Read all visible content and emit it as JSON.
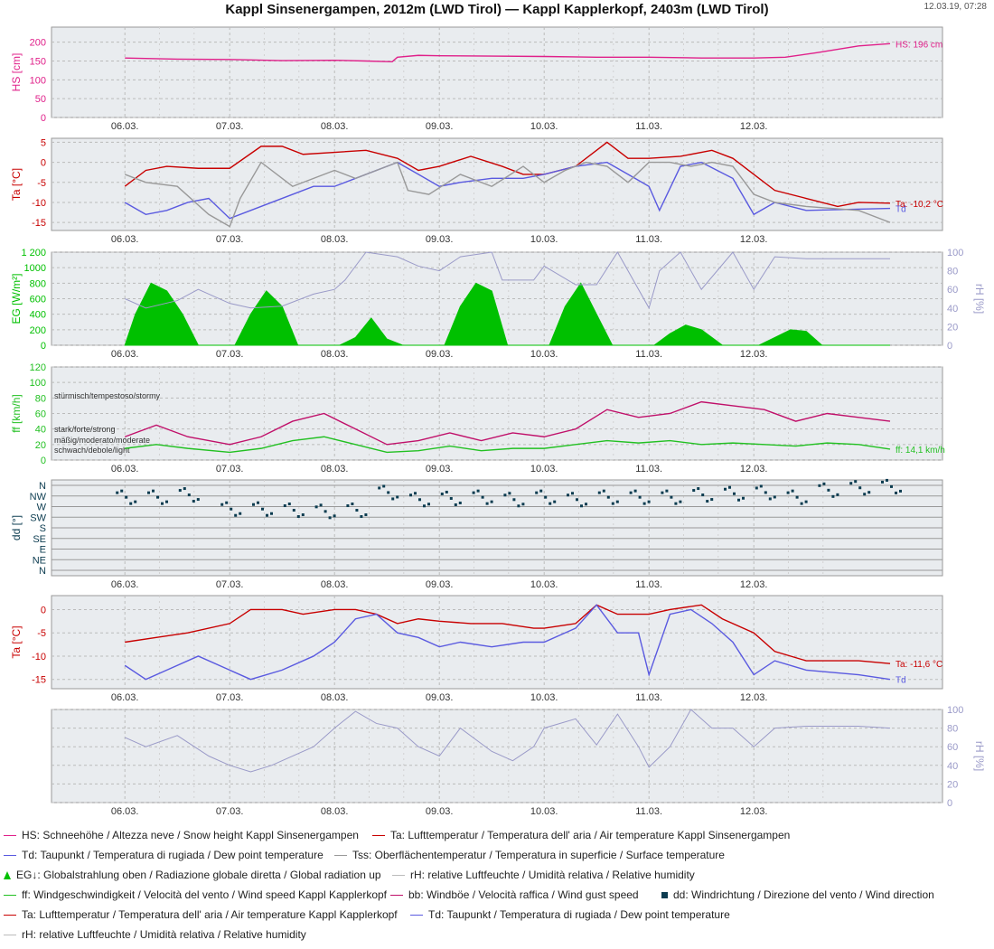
{
  "header": {
    "title": "Kappl Sinsenergampen, 2012m (LWD Tirol) — Kappl Kapplerkopf, 2403m (LWD Tirol)",
    "timestamp": "12.03.19, 07:28"
  },
  "colors": {
    "hs": "#e0208a",
    "ta": "#c80000",
    "td": "#5a5ae0",
    "tss": "#999999",
    "eg": "#00c000",
    "rh": "#9a9ac8",
    "ff": "#22c022",
    "bb": "#c0106a",
    "dd": "#0c3c50",
    "panel_bg": "#e9ecef"
  },
  "chart_data": [
    {
      "id": "hs",
      "type": "line",
      "ylabel": "HS [cm]",
      "ylim": [
        0,
        240
      ],
      "yticks": [
        0,
        50,
        100,
        150,
        200
      ],
      "xticks": [
        "06.03.",
        "07.03.",
        "08.03.",
        "09.03.",
        "10.03.",
        "11.03.",
        "12.03."
      ],
      "series": [
        {
          "name": "HS",
          "end_label": "HS: 196 cm",
          "x": [
            0,
            0.5,
            1,
            1.5,
            2,
            2.3,
            2.55,
            2.6,
            2.8,
            3,
            3.5,
            4,
            4.5,
            5,
            5.5,
            6,
            6.3,
            6.6,
            7,
            7.3
          ],
          "y": [
            158,
            155,
            154,
            151,
            152,
            150,
            148,
            160,
            165,
            164,
            163,
            162,
            160,
            160,
            158,
            158,
            160,
            172,
            190,
            196
          ]
        }
      ]
    },
    {
      "id": "ta1",
      "type": "line",
      "ylabel": "Ta [°C]",
      "ylim": [
        -17,
        6
      ],
      "yticks": [
        -15,
        -10,
        -5,
        0,
        5
      ],
      "xticks": [
        "06.03.",
        "07.03.",
        "08.03.",
        "09.03.",
        "10.03.",
        "11.03.",
        "12.03."
      ],
      "series": [
        {
          "name": "Ta",
          "end_label": "Ta: -10,2 °C",
          "x": [
            0,
            0.2,
            0.4,
            0.7,
            1,
            1.3,
            1.5,
            1.7,
            2,
            2.3,
            2.6,
            2.8,
            3,
            3.3,
            3.6,
            3.8,
            4,
            4.3,
            4.6,
            4.8,
            5,
            5.3,
            5.6,
            5.8,
            6,
            6.2,
            6.5,
            6.8,
            7,
            7.3
          ],
          "y": [
            -6,
            -2,
            -1,
            -1.5,
            -1.5,
            4,
            4,
            2,
            2.5,
            3,
            1,
            -2,
            -1,
            1.5,
            -1,
            -3,
            -3,
            -1,
            5,
            1,
            1,
            1.5,
            3,
            1,
            -3,
            -7,
            -9,
            -11,
            -10,
            -10.2
          ]
        },
        {
          "name": "Td",
          "end_label": "Td",
          "x": [
            0,
            0.2,
            0.4,
            0.6,
            0.8,
            1,
            1.2,
            1.4,
            1.6,
            1.8,
            2,
            2.3,
            2.6,
            2.8,
            3,
            3.2,
            3.5,
            3.8,
            4,
            4.3,
            4.6,
            4.8,
            5,
            5.1,
            5.3,
            5.5,
            5.8,
            6,
            6.2,
            6.5,
            7.3
          ],
          "y": [
            -10,
            -13,
            -12,
            -10,
            -9,
            -14,
            -12,
            -10,
            -8,
            -6,
            -6,
            -3,
            0,
            -3,
            -6,
            -5,
            -4,
            -4,
            -3,
            -1,
            0,
            -3,
            -6,
            -12,
            -1,
            0,
            -4,
            -13,
            -10,
            -12,
            -11.5
          ]
        },
        {
          "name": "Tss",
          "end_label": "",
          "x": [
            0,
            0.2,
            0.5,
            0.8,
            1,
            1.1,
            1.3,
            1.6,
            1.8,
            2,
            2.2,
            2.4,
            2.6,
            2.7,
            2.9,
            3.2,
            3.5,
            3.8,
            4,
            4.2,
            4.4,
            4.6,
            4.8,
            5,
            5.2,
            5.4,
            5.6,
            5.8,
            6,
            6.2,
            6.5,
            7,
            7.3
          ],
          "y": [
            -3,
            -5,
            -6,
            -13,
            -16,
            -9,
            0,
            -6,
            -4,
            -2,
            -4,
            -2,
            0,
            -7,
            -8,
            -3,
            -6,
            -1,
            -5,
            -2,
            0,
            -1,
            -5,
            0,
            0,
            -1,
            0,
            -1,
            -8,
            -10,
            -11,
            -12,
            -15
          ]
        }
      ]
    },
    {
      "id": "eg",
      "type": "area",
      "ylabel": "EG [W/m²]",
      "ylim": [
        0,
        1200
      ],
      "yticks": [
        0,
        200,
        400,
        600,
        800,
        1000,
        "1 200"
      ],
      "y2label": "rH [%]",
      "y2lim": [
        0,
        100
      ],
      "y2ticks": [
        0,
        20,
        40,
        60,
        80,
        100
      ],
      "xticks": [
        "06.03.",
        "07.03.",
        "08.03.",
        "09.03.",
        "10.03.",
        "11.03.",
        "12.03."
      ],
      "series": [
        {
          "name": "EG",
          "x": [
            0,
            0.1,
            0.25,
            0.4,
            0.55,
            0.7,
            1,
            1.05,
            1.2,
            1.35,
            1.5,
            1.65,
            1.7,
            2,
            2.05,
            2.2,
            2.35,
            2.5,
            2.65,
            2.7,
            3,
            3.05,
            3.2,
            3.35,
            3.5,
            3.65,
            3.7,
            4,
            4.05,
            4.2,
            4.35,
            4.5,
            4.65,
            4.7,
            5,
            5.05,
            5.2,
            5.35,
            5.5,
            5.65,
            5.7,
            6,
            6.05,
            6.2,
            6.35,
            6.5,
            6.65,
            6.7,
            7.3
          ],
          "y": [
            0,
            400,
            800,
            700,
            400,
            0,
            0,
            0,
            400,
            700,
            500,
            0,
            0,
            0,
            0,
            100,
            350,
            80,
            0,
            0,
            0,
            0,
            500,
            800,
            700,
            0,
            0,
            0,
            0,
            500,
            800,
            400,
            0,
            0,
            0,
            0,
            150,
            260,
            200,
            50,
            0,
            0,
            0,
            100,
            200,
            180,
            0,
            0,
            0
          ]
        },
        {
          "name": "rH",
          "axis": "y2",
          "x": [
            0,
            0.2,
            0.5,
            0.7,
            1,
            1.2,
            1.5,
            1.8,
            2,
            2.1,
            2.3,
            2.6,
            2.8,
            3,
            3.2,
            3.5,
            3.6,
            3.9,
            4,
            4.3,
            4.5,
            4.7,
            5,
            5.1,
            5.3,
            5.5,
            5.8,
            6,
            6.2,
            6.5,
            7.3
          ],
          "y": [
            50,
            40,
            48,
            60,
            45,
            40,
            42,
            55,
            60,
            70,
            100,
            95,
            85,
            80,
            95,
            100,
            70,
            70,
            85,
            65,
            65,
            100,
            40,
            80,
            100,
            60,
            100,
            60,
            95,
            93,
            93
          ]
        }
      ]
    },
    {
      "id": "ff",
      "type": "line",
      "ylabel": "ff [km/h]",
      "ylim": [
        0,
        120
      ],
      "yticks": [
        0,
        20,
        40,
        60,
        80,
        100,
        120
      ],
      "annotations": [
        "stürmisch/tempestoso/stormy",
        "stark/forte/strong",
        "mäßig/moderato/moderate",
        "schwach/debole/light"
      ],
      "xticks": [
        "06.03.",
        "07.03.",
        "08.03.",
        "09.03.",
        "10.03.",
        "11.03.",
        "12.03."
      ],
      "series": [
        {
          "name": "bb",
          "x": [
            0,
            0.3,
            0.6,
            1,
            1.3,
            1.6,
            1.9,
            2.2,
            2.5,
            2.8,
            3.1,
            3.4,
            3.7,
            4,
            4.3,
            4.6,
            4.9,
            5.2,
            5.5,
            5.8,
            6.1,
            6.4,
            6.7,
            7,
            7.3
          ],
          "y": [
            30,
            45,
            30,
            20,
            30,
            50,
            60,
            40,
            20,
            25,
            35,
            25,
            35,
            30,
            40,
            65,
            55,
            60,
            75,
            70,
            65,
            50,
            60,
            55,
            50
          ]
        },
        {
          "name": "ff",
          "end_label": "ff: 14,1 km/h",
          "x": [
            0,
            0.3,
            0.6,
            1,
            1.3,
            1.6,
            1.9,
            2.2,
            2.5,
            2.8,
            3.1,
            3.4,
            3.7,
            4,
            4.3,
            4.6,
            4.9,
            5.2,
            5.5,
            5.8,
            6.1,
            6.4,
            6.7,
            7,
            7.3
          ],
          "y": [
            15,
            20,
            15,
            10,
            15,
            25,
            30,
            20,
            10,
            12,
            18,
            12,
            15,
            15,
            20,
            25,
            22,
            25,
            20,
            22,
            20,
            18,
            22,
            20,
            14
          ]
        }
      ]
    },
    {
      "id": "dd",
      "type": "scatter",
      "ylabel": "dd [°]",
      "yticks": [
        "N",
        "NW",
        "W",
        "SW",
        "S",
        "SE",
        "E",
        "NE",
        "N"
      ],
      "xticks": [
        "06.03.",
        "07.03.",
        "08.03.",
        "09.03.",
        "10.03.",
        "11.03.",
        "12.03."
      ],
      "series": [
        {
          "name": "dd",
          "x": [
            0,
            0.3,
            0.6,
            1,
            1.3,
            1.6,
            1.9,
            2.2,
            2.5,
            2.8,
            3.1,
            3.4,
            3.7,
            4,
            4.3,
            4.6,
            4.9,
            5.2,
            5.5,
            5.8,
            6.1,
            6.4,
            6.7,
            7,
            7.3
          ],
          "y": [
            300,
            300,
            310,
            250,
            250,
            245,
            240,
            245,
            320,
            290,
            295,
            300,
            290,
            300,
            290,
            300,
            300,
            300,
            310,
            315,
            320,
            300,
            330,
            340,
            345
          ]
        }
      ]
    },
    {
      "id": "ta2",
      "type": "line",
      "ylabel": "Ta [°C]",
      "ylim": [
        -17,
        3
      ],
      "yticks": [
        -15,
        -10,
        -5,
        0
      ],
      "xticks": [
        "06.03.",
        "07.03.",
        "08.03.",
        "09.03.",
        "10.03.",
        "11.03.",
        "12.03."
      ],
      "series": [
        {
          "name": "Ta",
          "end_label": "Ta: -11,6 °C",
          "x": [
            0,
            0.3,
            0.6,
            1,
            1.2,
            1.5,
            1.7,
            2,
            2.2,
            2.4,
            2.6,
            2.8,
            3,
            3.3,
            3.6,
            3.9,
            4,
            4.3,
            4.5,
            4.7,
            5,
            5.2,
            5.5,
            5.7,
            6,
            6.2,
            6.5,
            7,
            7.3
          ],
          "y": [
            -7,
            -6,
            -5,
            -3,
            0,
            0,
            -1,
            0,
            0,
            -1,
            -3,
            -2,
            -2.5,
            -3,
            -3,
            -4,
            -4,
            -3,
            1,
            -1,
            -1,
            0,
            1,
            -2,
            -5,
            -9,
            -11,
            -11,
            -11.6
          ]
        },
        {
          "name": "Td",
          "end_label": "Td",
          "x": [
            0,
            0.2,
            0.4,
            0.7,
            1,
            1.2,
            1.5,
            1.8,
            2,
            2.2,
            2.4,
            2.6,
            2.8,
            3,
            3.2,
            3.5,
            3.8,
            4,
            4.3,
            4.5,
            4.7,
            4.9,
            5,
            5.2,
            5.4,
            5.6,
            5.8,
            6,
            6.2,
            6.5,
            7,
            7.3
          ],
          "y": [
            -12,
            -15,
            -13,
            -10,
            -13,
            -15,
            -13,
            -10,
            -7,
            -2,
            -1,
            -5,
            -6,
            -8,
            -7,
            -8,
            -7,
            -7,
            -4,
            1,
            -5,
            -5,
            -14,
            -1,
            0,
            -3,
            -7,
            -14,
            -11,
            -13,
            -14,
            -15
          ]
        }
      ]
    },
    {
      "id": "rh",
      "type": "line",
      "y2label": "rH [%]",
      "y2lim": [
        0,
        100
      ],
      "y2ticks": [
        0,
        20,
        40,
        60,
        80,
        100
      ],
      "xticks": [
        "06.03.",
        "07.03.",
        "08.03.",
        "09.03.",
        "10.03.",
        "11.03.",
        "12.03."
      ],
      "series": [
        {
          "name": "rH",
          "axis": "y2",
          "x": [
            0,
            0.2,
            0.5,
            0.8,
            1,
            1.2,
            1.4,
            1.8,
            2,
            2.2,
            2.4,
            2.6,
            2.8,
            3,
            3.2,
            3.5,
            3.7,
            3.9,
            4,
            4.3,
            4.5,
            4.7,
            4.9,
            5,
            5.2,
            5.4,
            5.6,
            5.8,
            6,
            6.2,
            6.5,
            7,
            7.3
          ],
          "y": [
            70,
            60,
            72,
            50,
            40,
            33,
            40,
            60,
            80,
            98,
            85,
            80,
            60,
            50,
            80,
            55,
            45,
            60,
            80,
            90,
            62,
            95,
            60,
            38,
            60,
            100,
            80,
            80,
            60,
            80,
            82,
            82,
            80
          ]
        }
      ]
    }
  ],
  "legend": {
    "rows": [
      [
        {
          "symbol": "line",
          "color": "#e0208a",
          "text": "HS: Schneehöhe / Altezza neve / Snow height  Kappl Sinsenergampen"
        },
        {
          "symbol": "line",
          "color": "#c80000",
          "text": "Ta: Lufttemperatur / Temperatura dell' aria / Air temperature  Kappl Sinsenergampen"
        }
      ],
      [
        {
          "symbol": "line",
          "color": "#5a5ae0",
          "text": "Td: Taupunkt / Temperatura di rugiada / Dew point temperature"
        },
        {
          "symbol": "line",
          "color": "#999999",
          "text": "Tss: Oberflächentemperatur / Temperatura in superficie / Surface temperature"
        }
      ],
      [
        {
          "symbol": "area",
          "color": "#00c000",
          "text": "EG↓: Globalstrahlung oben / Radiazione globale diretta / Global radiation up"
        },
        {
          "symbol": "line",
          "color": "#bbbbbb",
          "text": "rH: relative Luftfeuchte / Umidità relativa / Relative humidity"
        }
      ],
      [
        {
          "symbol": "line",
          "color": "#22c022",
          "text": "ff: Windgeschwindigkeit / Velocità del vento / Wind speed  Kappl Kapplerkopf"
        },
        {
          "symbol": "line",
          "color": "#c0106a",
          "text": "bb: Windböe / Velocità raffica / Wind gust speed"
        },
        {
          "symbol": "square",
          "color": "#0c3c50",
          "text": "dd: Windrichtung / Direzione del vento / Wind direction"
        }
      ],
      [
        {
          "symbol": "line",
          "color": "#c80000",
          "text": "Ta: Lufttemperatur / Temperatura dell' aria / Air temperature  Kappl Kapplerkopf"
        },
        {
          "symbol": "line",
          "color": "#5a5ae0",
          "text": "Td: Taupunkt / Temperatura di rugiada / Dew point temperature"
        }
      ],
      [
        {
          "symbol": "line",
          "color": "#bbbbbb",
          "text": "rH: relative Luftfeuchte / Umidità relativa / Relative humidity"
        }
      ]
    ]
  }
}
